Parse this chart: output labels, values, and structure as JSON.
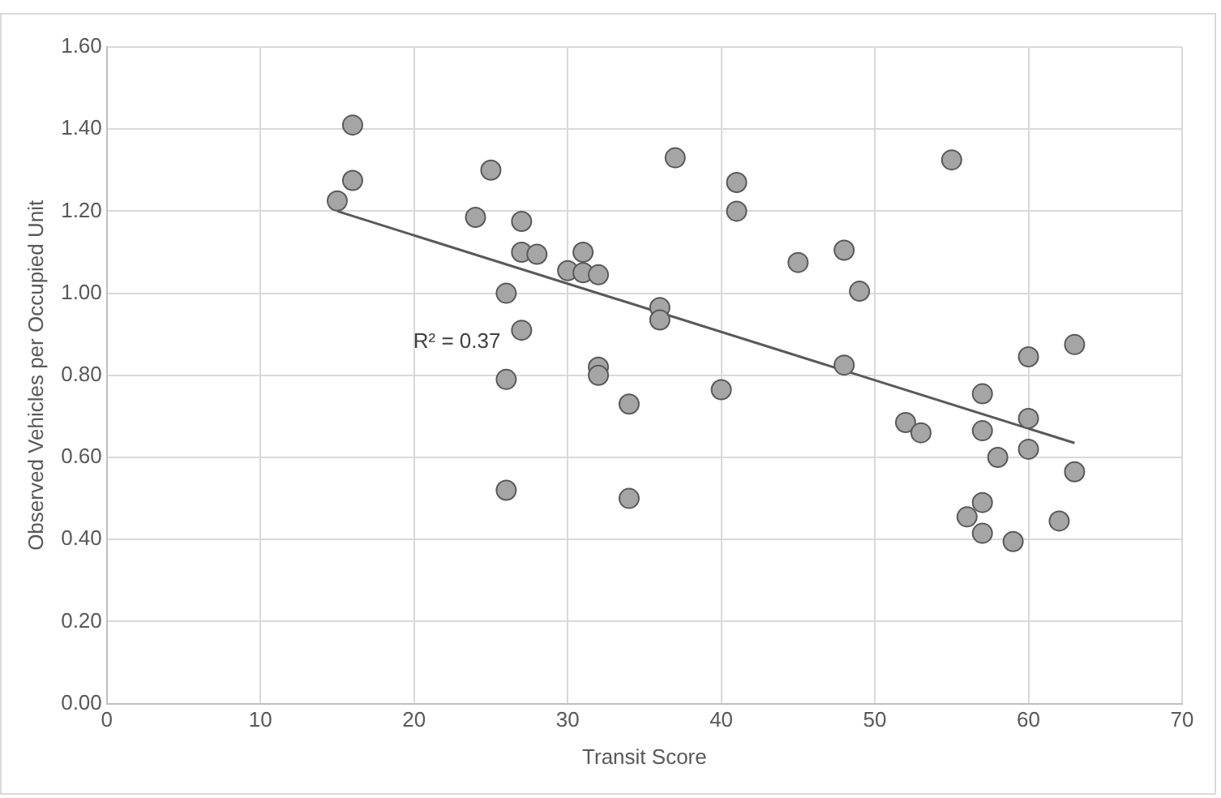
{
  "chart_data": {
    "type": "scatter",
    "xlabel": "Transit Score",
    "ylabel": "Observed Vehicles per Occupied Unit",
    "xlim": [
      0,
      70
    ],
    "xticks": [
      0,
      10,
      20,
      30,
      40,
      50,
      60,
      70
    ],
    "ylim": [
      0,
      1.6
    ],
    "yticks": [
      {
        "value": 0,
        "label": "0.00"
      },
      {
        "value": 0.2,
        "label": "0.20"
      },
      {
        "value": 0.4,
        "label": "0.40"
      },
      {
        "value": 0.6,
        "label": "0.60"
      },
      {
        "value": 0.8,
        "label": "0.80"
      },
      {
        "value": 1,
        "label": "1.00"
      },
      {
        "value": 1.2,
        "label": "1.20"
      },
      {
        "value": 1.4,
        "label": "1.40"
      },
      {
        "value": 1.6,
        "label": "1.60"
      }
    ],
    "grid": true,
    "legend": false,
    "series": [
      {
        "marker": "circle",
        "color": "#a5a5a5",
        "x": [
          15,
          16,
          16,
          24,
          25,
          26,
          26,
          26,
          27,
          27,
          27,
          28,
          30,
          31,
          31,
          32,
          32,
          32,
          34,
          34,
          36,
          36,
          37,
          40,
          41,
          41,
          45,
          48,
          48,
          49,
          52,
          53,
          55,
          56,
          57,
          57,
          57,
          57,
          58,
          59,
          60,
          60,
          60,
          62,
          63,
          63
        ],
        "values": [
          1.225,
          1.41,
          1.275,
          1.185,
          1.3,
          1.0,
          0.79,
          0.52,
          1.175,
          1.1,
          0.91,
          1.095,
          1.055,
          1.1,
          1.05,
          1.045,
          0.82,
          0.8,
          0.73,
          0.5,
          0.965,
          0.935,
          1.33,
          0.765,
          1.27,
          1.2,
          1.075,
          1.105,
          0.825,
          1.005,
          0.685,
          0.66,
          1.325,
          0.455,
          0.755,
          0.665,
          0.49,
          0.415,
          0.6,
          0.395,
          0.845,
          0.695,
          0.62,
          0.445,
          0.875,
          0.565
        ]
      },
      {
        "type": "line",
        "marker": "none",
        "color": "#595959",
        "x": [
          15,
          63
        ],
        "values": [
          1.2,
          0.635
        ]
      }
    ],
    "annotations": [
      "R² = 0.37"
    ]
  }
}
